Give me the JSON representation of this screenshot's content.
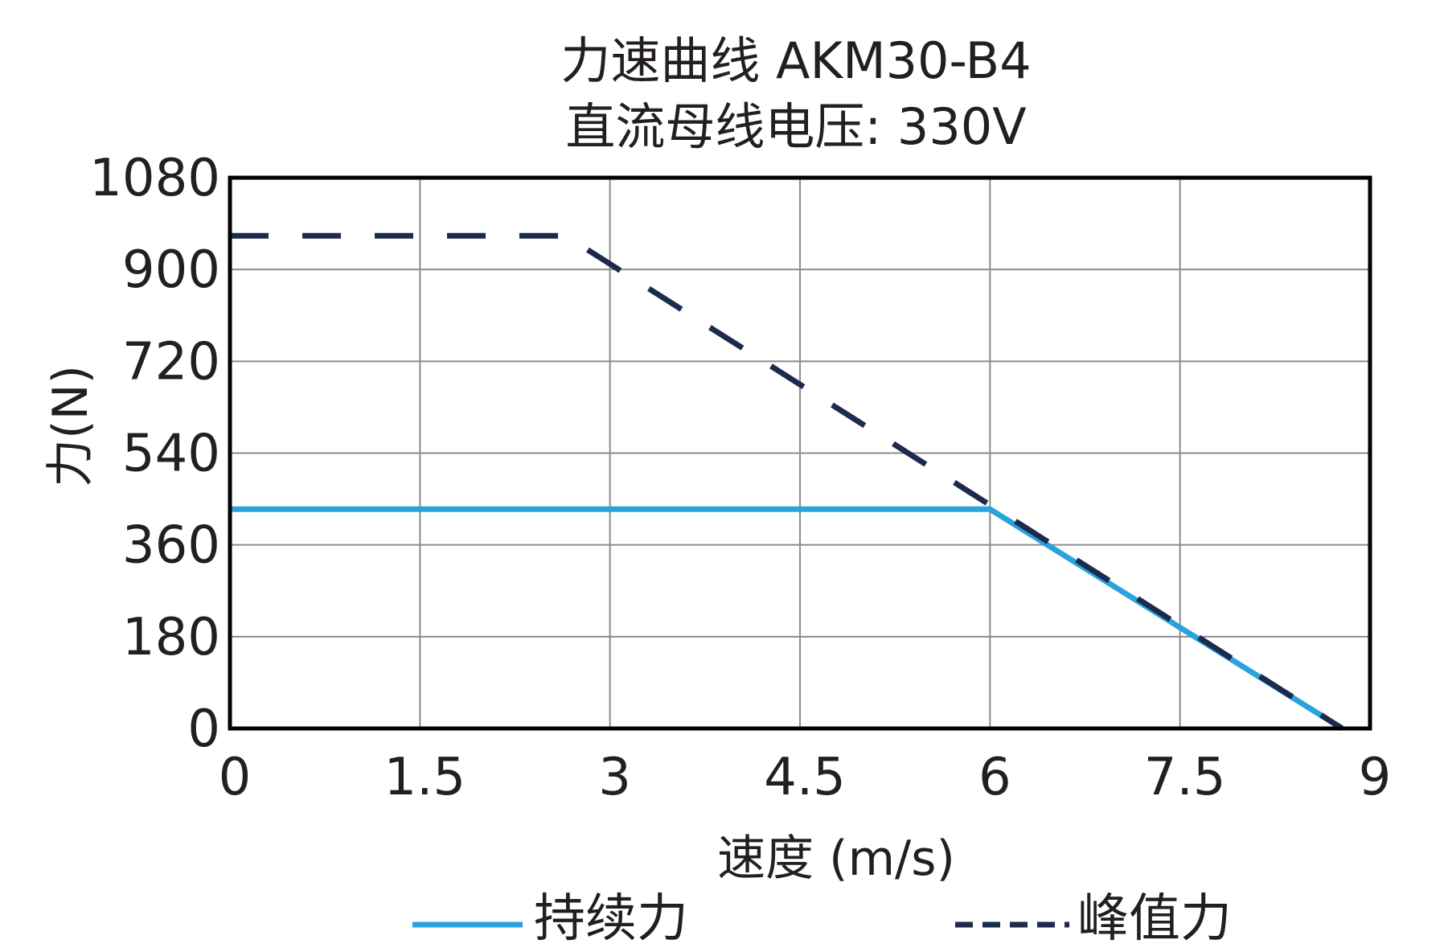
{
  "chart_data": {
    "type": "line",
    "title": [
      "力速曲线 AKM30-B4",
      "直流母线电压: 330V"
    ],
    "xlabel": "速度 (m/s)",
    "ylabel": "力(N)",
    "xlim": [
      0,
      9
    ],
    "ylim": [
      0,
      1080
    ],
    "xticks": [
      "0",
      "1.5",
      "3",
      "4.5",
      "6",
      "7.5",
      "9"
    ],
    "yticks": [
      "0",
      "180",
      "360",
      "540",
      "720",
      "900",
      "1080"
    ],
    "grid": true,
    "legend_position": "bottom",
    "series": [
      {
        "name": "持续力",
        "style": "solid",
        "color": "#29a3dc",
        "x": [
          0,
          6.0,
          8.78
        ],
        "y": [
          430,
          430,
          0
        ]
      },
      {
        "name": "峰值力",
        "style": "dashed",
        "color": "#1c2a4d",
        "x": [
          0,
          2.65,
          8.78
        ],
        "y": [
          966,
          966,
          0
        ]
      }
    ]
  }
}
